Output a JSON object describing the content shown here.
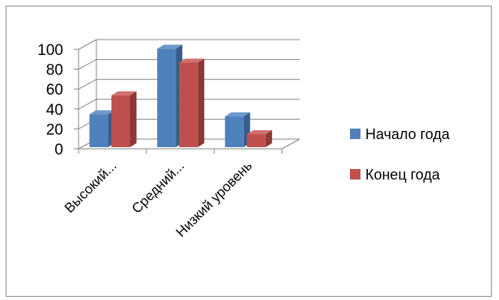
{
  "chart_data": {
    "type": "bar",
    "style": "3d-clustered-column",
    "categories": [
      "Высокий...",
      "Средний...",
      "Низкий уровень"
    ],
    "series": [
      {
        "name": "Начало года",
        "values": [
          33,
          99,
          31
        ],
        "color": "#4f81bd",
        "side_color": "#385d8a",
        "top_color": "#6d98cc"
      },
      {
        "name": "Конец года",
        "values": [
          52,
          85,
          13
        ],
        "color": "#c0504d",
        "side_color": "#8c3836",
        "top_color": "#d1716e"
      }
    ],
    "yticks": [
      0,
      20,
      40,
      60,
      80,
      100
    ],
    "ylim": [
      0,
      100
    ],
    "grid": true,
    "legend_position": "right"
  }
}
